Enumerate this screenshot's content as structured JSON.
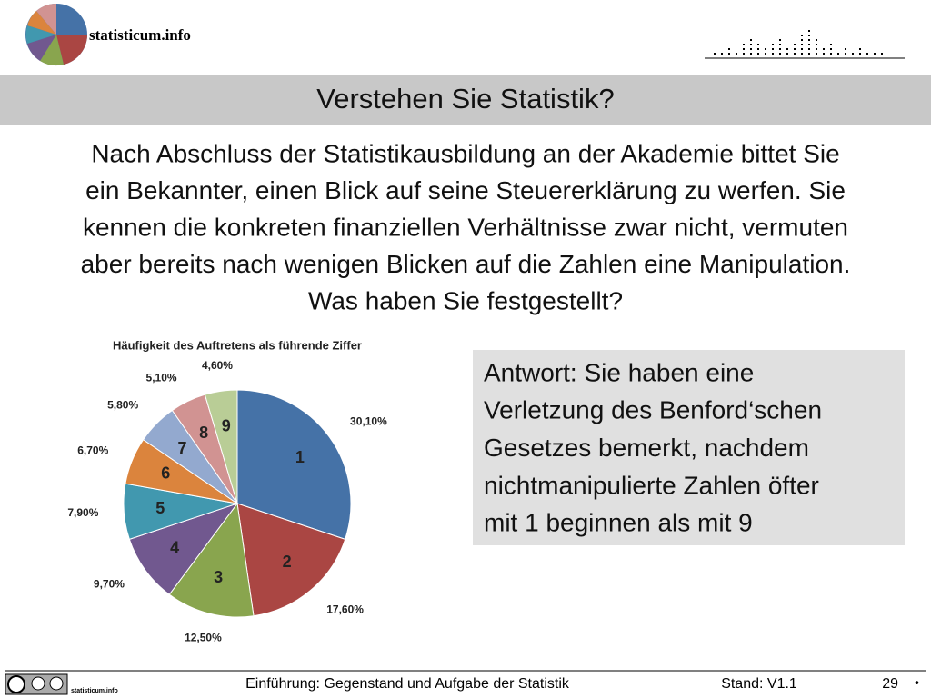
{
  "header": {
    "logo": "statisticum.info",
    "title": "Verstehen Sie Statistik?"
  },
  "question": {
    "lines": [
      "Nach Abschluss der Statistikausbildung an der Akademie bittet Sie",
      "ein Bekannter, einen Blick auf seine Steuererklärung zu werfen. Sie",
      "kennen die konkreten finanziellen Verhältnisse zwar nicht, vermuten",
      "aber bereits nach wenigen Blicken auf die Zahlen eine Manipulation.",
      "Was haben Sie festgestellt?"
    ]
  },
  "answer": {
    "lines": [
      "Antwort: Sie haben eine",
      "Verletzung des Benford‘schen",
      "Gesetzes bemerkt, nachdem",
      "nichtmanipulierte Zahlen öfter",
      "mit 1 beginnen als mit 9"
    ]
  },
  "chart_data": {
    "type": "pie",
    "title": "Häufigkeit des Auftretens als führende Ziffer",
    "categories": [
      "1",
      "2",
      "3",
      "4",
      "5",
      "6",
      "7",
      "8",
      "9"
    ],
    "values": [
      30.1,
      17.6,
      12.5,
      9.7,
      7.9,
      6.7,
      5.8,
      5.1,
      4.6
    ],
    "value_labels": [
      "30,10%",
      "17,60%",
      "12,50%",
      "9,70%",
      "7,90%",
      "6,70%",
      "5,80%",
      "5,10%",
      "4,60%"
    ],
    "colors": [
      "#4572a7",
      "#aa4643",
      "#89a54e",
      "#71588f",
      "#4198af",
      "#db843d",
      "#93a9cf",
      "#d19392",
      "#b9cd96"
    ]
  },
  "footer": {
    "logo": "statisticum.info",
    "course": "Einführung: Gegenstand und Aufgabe der Statistik",
    "version": "Stand: V1.1",
    "page": "29",
    "bullet": "•"
  }
}
